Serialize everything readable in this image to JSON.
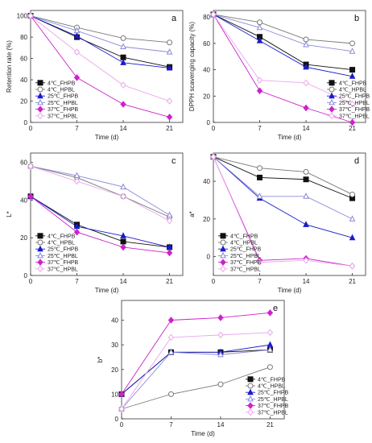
{
  "colors": {
    "4C_FHPB": "#111111",
    "4C_HPBL": "#777777",
    "25C_FHPB": "#1a1acc",
    "25C_HPBL": "#8a8ad8",
    "37C_FHPB": "#cc22cc",
    "37C_HPBL": "#e9a8e9"
  },
  "chart_data": [
    {
      "panel": "a",
      "type": "line",
      "xlabel": "Time (d)",
      "ylabel": "Retention rate (%)",
      "xlim": [
        0,
        23
      ],
      "ylim": [
        0,
        105
      ],
      "xticks": [
        0,
        7,
        14,
        21
      ],
      "yticks": [
        0,
        20,
        40,
        60,
        80,
        100
      ],
      "x": [
        0,
        7,
        14,
        21
      ],
      "legend_position": "bottom-left",
      "series": [
        {
          "name": "4℃_FHPB",
          "values": [
            100,
            80,
            61,
            52
          ]
        },
        {
          "name": "4℃_HPBL",
          "values": [
            100,
            89,
            79,
            75
          ]
        },
        {
          "name": "25℃_FHPB",
          "values": [
            100,
            81,
            56,
            51
          ]
        },
        {
          "name": "25℃_HPBL",
          "values": [
            100,
            86,
            71,
            66
          ]
        },
        {
          "name": "37℃_FHPB",
          "values": [
            100,
            42,
            17,
            5
          ]
        },
        {
          "name": "37℃_HPBL",
          "values": [
            100,
            66,
            35,
            20
          ]
        }
      ]
    },
    {
      "panel": "b",
      "type": "line",
      "xlabel": "Time (d)",
      "ylabel": "DPPH scavenging capacity (%)",
      "xlim": [
        0,
        23
      ],
      "ylim": [
        0,
        85
      ],
      "xticks": [
        0,
        7,
        14,
        21
      ],
      "yticks": [
        0,
        20,
        40,
        60,
        80
      ],
      "x": [
        0,
        7,
        14,
        21
      ],
      "legend_position": "bottom-right",
      "series": [
        {
          "name": "4℃_FHPB",
          "values": [
            82,
            65,
            44,
            40
          ]
        },
        {
          "name": "4℃_HPBL",
          "values": [
            82,
            76,
            63,
            60
          ]
        },
        {
          "name": "25℃_FHPB",
          "values": [
            82,
            62,
            42,
            35
          ]
        },
        {
          "name": "25℃_HPBL",
          "values": [
            82,
            72,
            59,
            54
          ]
        },
        {
          "name": "37℃_FHPB",
          "values": [
            82,
            24,
            11,
            0
          ]
        },
        {
          "name": "37℃_HPBL",
          "values": [
            82,
            32,
            30,
            14
          ]
        }
      ]
    },
    {
      "panel": "c",
      "type": "line",
      "xlabel": "Time (d)",
      "ylabel": "L*",
      "xlim": [
        0,
        23
      ],
      "ylim": [
        0,
        65
      ],
      "xticks": [
        0,
        7,
        14,
        21
      ],
      "yticks": [
        0,
        20,
        40,
        60
      ],
      "x": [
        0,
        7,
        14,
        21
      ],
      "legend_position": "bottom-left",
      "series": [
        {
          "name": "4℃_FHPB",
          "values": [
            42,
            27,
            18,
            15
          ]
        },
        {
          "name": "4℃_HPBL",
          "values": [
            58,
            52,
            42,
            31
          ]
        },
        {
          "name": "25℃_FHPB",
          "values": [
            42,
            26,
            21,
            15
          ]
        },
        {
          "name": "25℃_HPBL",
          "values": [
            58,
            53,
            47,
            32
          ]
        },
        {
          "name": "37℃_FHPB",
          "values": [
            42,
            23,
            15,
            12
          ]
        },
        {
          "name": "37℃_HPBL",
          "values": [
            58,
            50,
            42,
            29
          ]
        }
      ]
    },
    {
      "panel": "d",
      "type": "line",
      "xlabel": "Time (d)",
      "ylabel": "a*",
      "xlim": [
        0,
        23
      ],
      "ylim": [
        -10,
        55
      ],
      "xticks": [
        0,
        7,
        14,
        21
      ],
      "yticks": [
        0,
        20,
        40
      ],
      "x": [
        0,
        7,
        14,
        21
      ],
      "legend_position": "bottom-left",
      "series": [
        {
          "name": "4℃_FHPB",
          "values": [
            53,
            42,
            41,
            31
          ]
        },
        {
          "name": "4℃_HPBL",
          "values": [
            53,
            47,
            45,
            33
          ]
        },
        {
          "name": "25℃_FHPB",
          "values": [
            53,
            31,
            17,
            10
          ]
        },
        {
          "name": "25℃_HPBL",
          "values": [
            53,
            32,
            32,
            20
          ]
        },
        {
          "name": "37℃_FHPB",
          "values": [
            53,
            -2,
            -1,
            -5
          ]
        },
        {
          "name": "37℃_HPBL",
          "values": [
            53,
            -3,
            -2,
            -5
          ]
        }
      ]
    },
    {
      "panel": "e",
      "type": "line",
      "xlabel": "Time (d)",
      "ylabel": "b*",
      "xlim": [
        0,
        23
      ],
      "ylim": [
        0,
        48
      ],
      "xticks": [
        0,
        7,
        14,
        21
      ],
      "yticks": [
        0,
        10,
        20,
        30,
        40
      ],
      "x": [
        0,
        7,
        14,
        21
      ],
      "legend_position": "bottom-right",
      "series": [
        {
          "name": "4℃_FHPB",
          "values": [
            10,
            27,
            27,
            28
          ]
        },
        {
          "name": "4℃_HPBL",
          "values": [
            4,
            10,
            14,
            21
          ]
        },
        {
          "name": "25℃_FHPB",
          "values": [
            10,
            27,
            27,
            30
          ]
        },
        {
          "name": "25℃_HPBL",
          "values": [
            4,
            27,
            26,
            28
          ]
        },
        {
          "name": "37℃_FHPB",
          "values": [
            10,
            40,
            41,
            43
          ]
        },
        {
          "name": "37℃_HPBL",
          "values": [
            4,
            33,
            34,
            35
          ]
        }
      ]
    }
  ]
}
